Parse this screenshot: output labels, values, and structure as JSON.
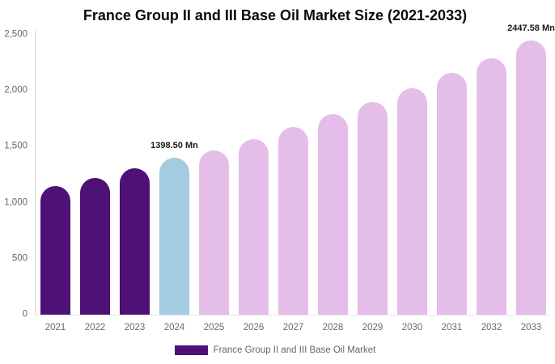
{
  "chart_data": {
    "type": "bar",
    "title": "France Group II and III Base Oil Market Size (2021-2033)",
    "categories": [
      "2021",
      "2022",
      "2023",
      "2024",
      "2025",
      "2026",
      "2027",
      "2028",
      "2029",
      "2030",
      "2031",
      "2032",
      "2033"
    ],
    "series": [
      {
        "name": "France Group II and III Base Oil Market",
        "values": [
          1150,
          1220,
          1305,
          1398.5,
          1465,
          1570,
          1675,
          1790,
          1900,
          2020,
          2160,
          2290,
          2447.58
        ]
      }
    ],
    "unit": "Mn",
    "ylim": [
      0,
      2500
    ],
    "yticks": [
      {
        "value": 0,
        "label": "0"
      },
      {
        "value": 500,
        "label": "500"
      },
      {
        "value": 1000,
        "label": "1,000"
      },
      {
        "value": 1500,
        "label": "1,500"
      },
      {
        "value": 2000,
        "label": "2,000"
      },
      {
        "value": 2500,
        "label": "2,500"
      }
    ],
    "grid": false,
    "legend_position": "bottom",
    "bar_colors": [
      "#4E1277",
      "#4E1277",
      "#4E1277",
      "#A3CCE0",
      "#E4BEE8",
      "#E4BEE8",
      "#E4BEE8",
      "#E4BEE8",
      "#E4BEE8",
      "#E4BEE8",
      "#E4BEE8",
      "#E4BEE8",
      "#E4BEE8"
    ],
    "annotations": [
      {
        "category": "2024",
        "label": "1398.50 Mn"
      },
      {
        "category": "2033",
        "label": "2447.58 Mn"
      }
    ]
  },
  "legend": {
    "label": "France Group II and III Base Oil Market",
    "swatch_color": "#4E1277"
  },
  "colors": {
    "historical_bar": "#4E1277",
    "highlight_bar": "#A3CCE0",
    "forecast_bar": "#E4BEE8",
    "axis_text": "#666666",
    "annotation_text": "#1A1A1A",
    "title_text": "#0A0A0A"
  }
}
